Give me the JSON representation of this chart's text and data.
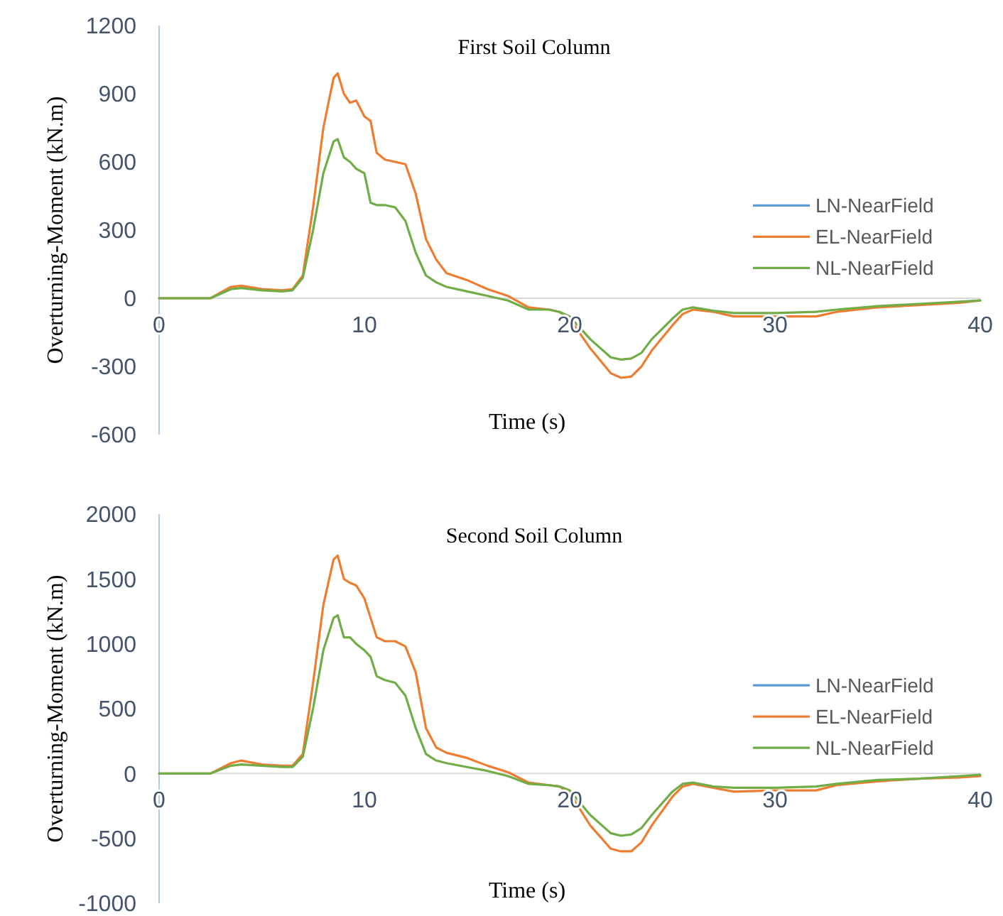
{
  "chart_data": [
    {
      "type": "line",
      "title": "First Soil Column",
      "xlabel": "Time (s)",
      "ylabel": "Overturning-Moment (kN.m)",
      "x": [
        0,
        2.5,
        3.5,
        4,
        5,
        6,
        6.5,
        7,
        7.5,
        8,
        8.5,
        8.7,
        9,
        9.3,
        9.6,
        10,
        10.3,
        10.6,
        11,
        11.5,
        12,
        12.5,
        13,
        13.5,
        14,
        15,
        16,
        17,
        18,
        19,
        19.5,
        20,
        21,
        22,
        22.5,
        23,
        23.5,
        24,
        25,
        25.5,
        26,
        27,
        28,
        30,
        32,
        33,
        35,
        37,
        39,
        40
      ],
      "xlim": [
        0,
        40
      ],
      "xticks": [
        0,
        10,
        20,
        30,
        40
      ],
      "ylim": [
        -600,
        1200
      ],
      "yticks": [
        -600,
        -300,
        0,
        300,
        600,
        900,
        1200
      ],
      "grid": false,
      "legend": "right",
      "series": [
        {
          "name": "LN-NearField",
          "color": "#5b9bd5",
          "values": [
            null,
            null,
            null,
            null,
            null,
            null,
            null,
            null,
            null,
            null,
            null,
            null,
            null,
            null,
            null,
            null,
            null,
            null,
            null,
            null,
            null,
            null,
            null,
            null,
            null,
            null,
            null,
            null,
            null,
            null,
            null,
            null,
            null,
            null,
            null,
            null,
            null,
            null,
            null,
            null,
            null,
            null,
            null,
            null,
            null,
            null,
            null,
            null,
            null,
            null
          ]
        },
        {
          "name": "EL-NearField",
          "color": "#ed7d31",
          "values": [
            0,
            0,
            50,
            55,
            40,
            35,
            40,
            100,
            400,
            750,
            970,
            990,
            900,
            860,
            870,
            800,
            780,
            640,
            610,
            600,
            590,
            460,
            260,
            170,
            110,
            80,
            40,
            10,
            -40,
            -50,
            -60,
            -90,
            -220,
            -330,
            -350,
            -345,
            -300,
            -230,
            -120,
            -70,
            -50,
            -60,
            -80,
            -80,
            -80,
            -60,
            -40,
            -30,
            -20,
            -10
          ]
        },
        {
          "name": "NL-NearField",
          "color": "#70ad47",
          "values": [
            0,
            0,
            40,
            45,
            35,
            30,
            35,
            90,
            300,
            550,
            690,
            700,
            620,
            600,
            570,
            550,
            420,
            410,
            410,
            400,
            340,
            200,
            100,
            70,
            50,
            30,
            10,
            -10,
            -50,
            -50,
            -60,
            -80,
            -180,
            -260,
            -270,
            -265,
            -240,
            -180,
            -90,
            -50,
            -40,
            -55,
            -65,
            -65,
            -60,
            -50,
            -35,
            -25,
            -15,
            -10
          ]
        }
      ]
    },
    {
      "type": "line",
      "title": "Second Soil Column",
      "xlabel": "Time (s)",
      "ylabel": "Overturning-Moment (kN.m)",
      "x": [
        0,
        2.5,
        3.5,
        4,
        5,
        6,
        6.5,
        7,
        7.5,
        8,
        8.5,
        8.7,
        9,
        9.3,
        9.6,
        10,
        10.3,
        10.6,
        11,
        11.5,
        12,
        12.5,
        13,
        13.5,
        14,
        15,
        16,
        17,
        18,
        19,
        19.5,
        20,
        21,
        22,
        22.5,
        23,
        23.5,
        24,
        25,
        25.5,
        26,
        27,
        28,
        30,
        32,
        33,
        35,
        37,
        39,
        40
      ],
      "xlim": [
        0,
        40
      ],
      "xticks": [
        0,
        10,
        20,
        30,
        40
      ],
      "ylim": [
        -1000,
        2000
      ],
      "yticks": [
        -1000,
        -500,
        0,
        500,
        1000,
        1500,
        2000
      ],
      "grid": false,
      "legend": "right",
      "series": [
        {
          "name": "LN-NearField",
          "color": "#5b9bd5",
          "values": [
            null,
            null,
            null,
            null,
            null,
            null,
            null,
            null,
            null,
            null,
            null,
            null,
            null,
            null,
            null,
            null,
            null,
            null,
            null,
            null,
            null,
            null,
            null,
            null,
            null,
            null,
            null,
            null,
            null,
            null,
            null,
            null,
            null,
            null,
            null,
            null,
            null,
            null,
            null,
            null,
            null,
            null,
            null,
            null,
            null,
            null,
            null,
            null,
            null,
            null
          ]
        },
        {
          "name": "EL-NearField",
          "color": "#ed7d31",
          "values": [
            0,
            0,
            80,
            100,
            70,
            60,
            60,
            150,
            700,
            1300,
            1650,
            1680,
            1500,
            1470,
            1450,
            1350,
            1200,
            1050,
            1020,
            1020,
            980,
            780,
            350,
            200,
            160,
            120,
            60,
            10,
            -70,
            -90,
            -100,
            -150,
            -400,
            -580,
            -600,
            -600,
            -530,
            -400,
            -180,
            -100,
            -80,
            -110,
            -140,
            -130,
            -130,
            -90,
            -60,
            -40,
            -30,
            -20
          ]
        },
        {
          "name": "NL-NearField",
          "color": "#70ad47",
          "values": [
            0,
            0,
            60,
            70,
            60,
            50,
            50,
            130,
            500,
            950,
            1200,
            1220,
            1050,
            1050,
            1000,
            950,
            900,
            750,
            720,
            700,
            600,
            350,
            150,
            100,
            80,
            50,
            20,
            -20,
            -80,
            -90,
            -100,
            -130,
            -320,
            -460,
            -480,
            -470,
            -420,
            -320,
            -140,
            -80,
            -70,
            -100,
            -110,
            -110,
            -100,
            -80,
            -50,
            -40,
            -20,
            -10
          ]
        }
      ]
    }
  ]
}
